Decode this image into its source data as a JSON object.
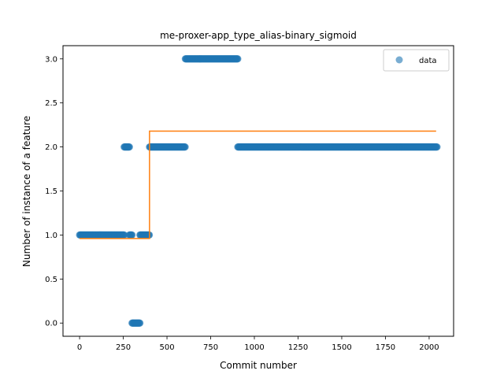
{
  "chart_data": {
    "type": "scatter",
    "title": "me-proxer-app_type_alias-binary_sigmoid",
    "xlabel": "Commit number",
    "ylabel": "Number of instance of a feature",
    "xlim": [
      -95,
      2140
    ],
    "ylim": [
      -0.15,
      3.15
    ],
    "xticks": [
      0,
      250,
      500,
      750,
      1000,
      1250,
      1500,
      1750,
      2000
    ],
    "yticks": [
      0.0,
      0.5,
      1.0,
      1.5,
      2.0,
      2.5,
      3.0
    ],
    "ytick_format": "0.0",
    "grid": false,
    "legend": {
      "position": "top-right",
      "entries": [
        "data"
      ]
    },
    "colors": {
      "data": "#1f77b4",
      "fit": "#ff7f0e"
    },
    "series": [
      {
        "name": "data",
        "kind": "scatter",
        "segments": [
          {
            "x_start": 0,
            "x_end": 255,
            "y": 1
          },
          {
            "x_start": 255,
            "x_end": 285,
            "y": 2
          },
          {
            "x_start": 285,
            "x_end": 300,
            "y": 1
          },
          {
            "x_start": 300,
            "x_end": 345,
            "y": 0
          },
          {
            "x_start": 345,
            "x_end": 400,
            "y": 1
          },
          {
            "x_start": 400,
            "x_end": 605,
            "y": 2
          },
          {
            "x_start": 605,
            "x_end": 905,
            "y": 3
          },
          {
            "x_start": 905,
            "x_end": 2045,
            "y": 2
          }
        ]
      },
      {
        "kind": "line",
        "points": [
          [
            0,
            0.96
          ],
          [
            400,
            0.96
          ],
          [
            400,
            2.18
          ],
          [
            2040,
            2.18
          ]
        ]
      }
    ]
  }
}
